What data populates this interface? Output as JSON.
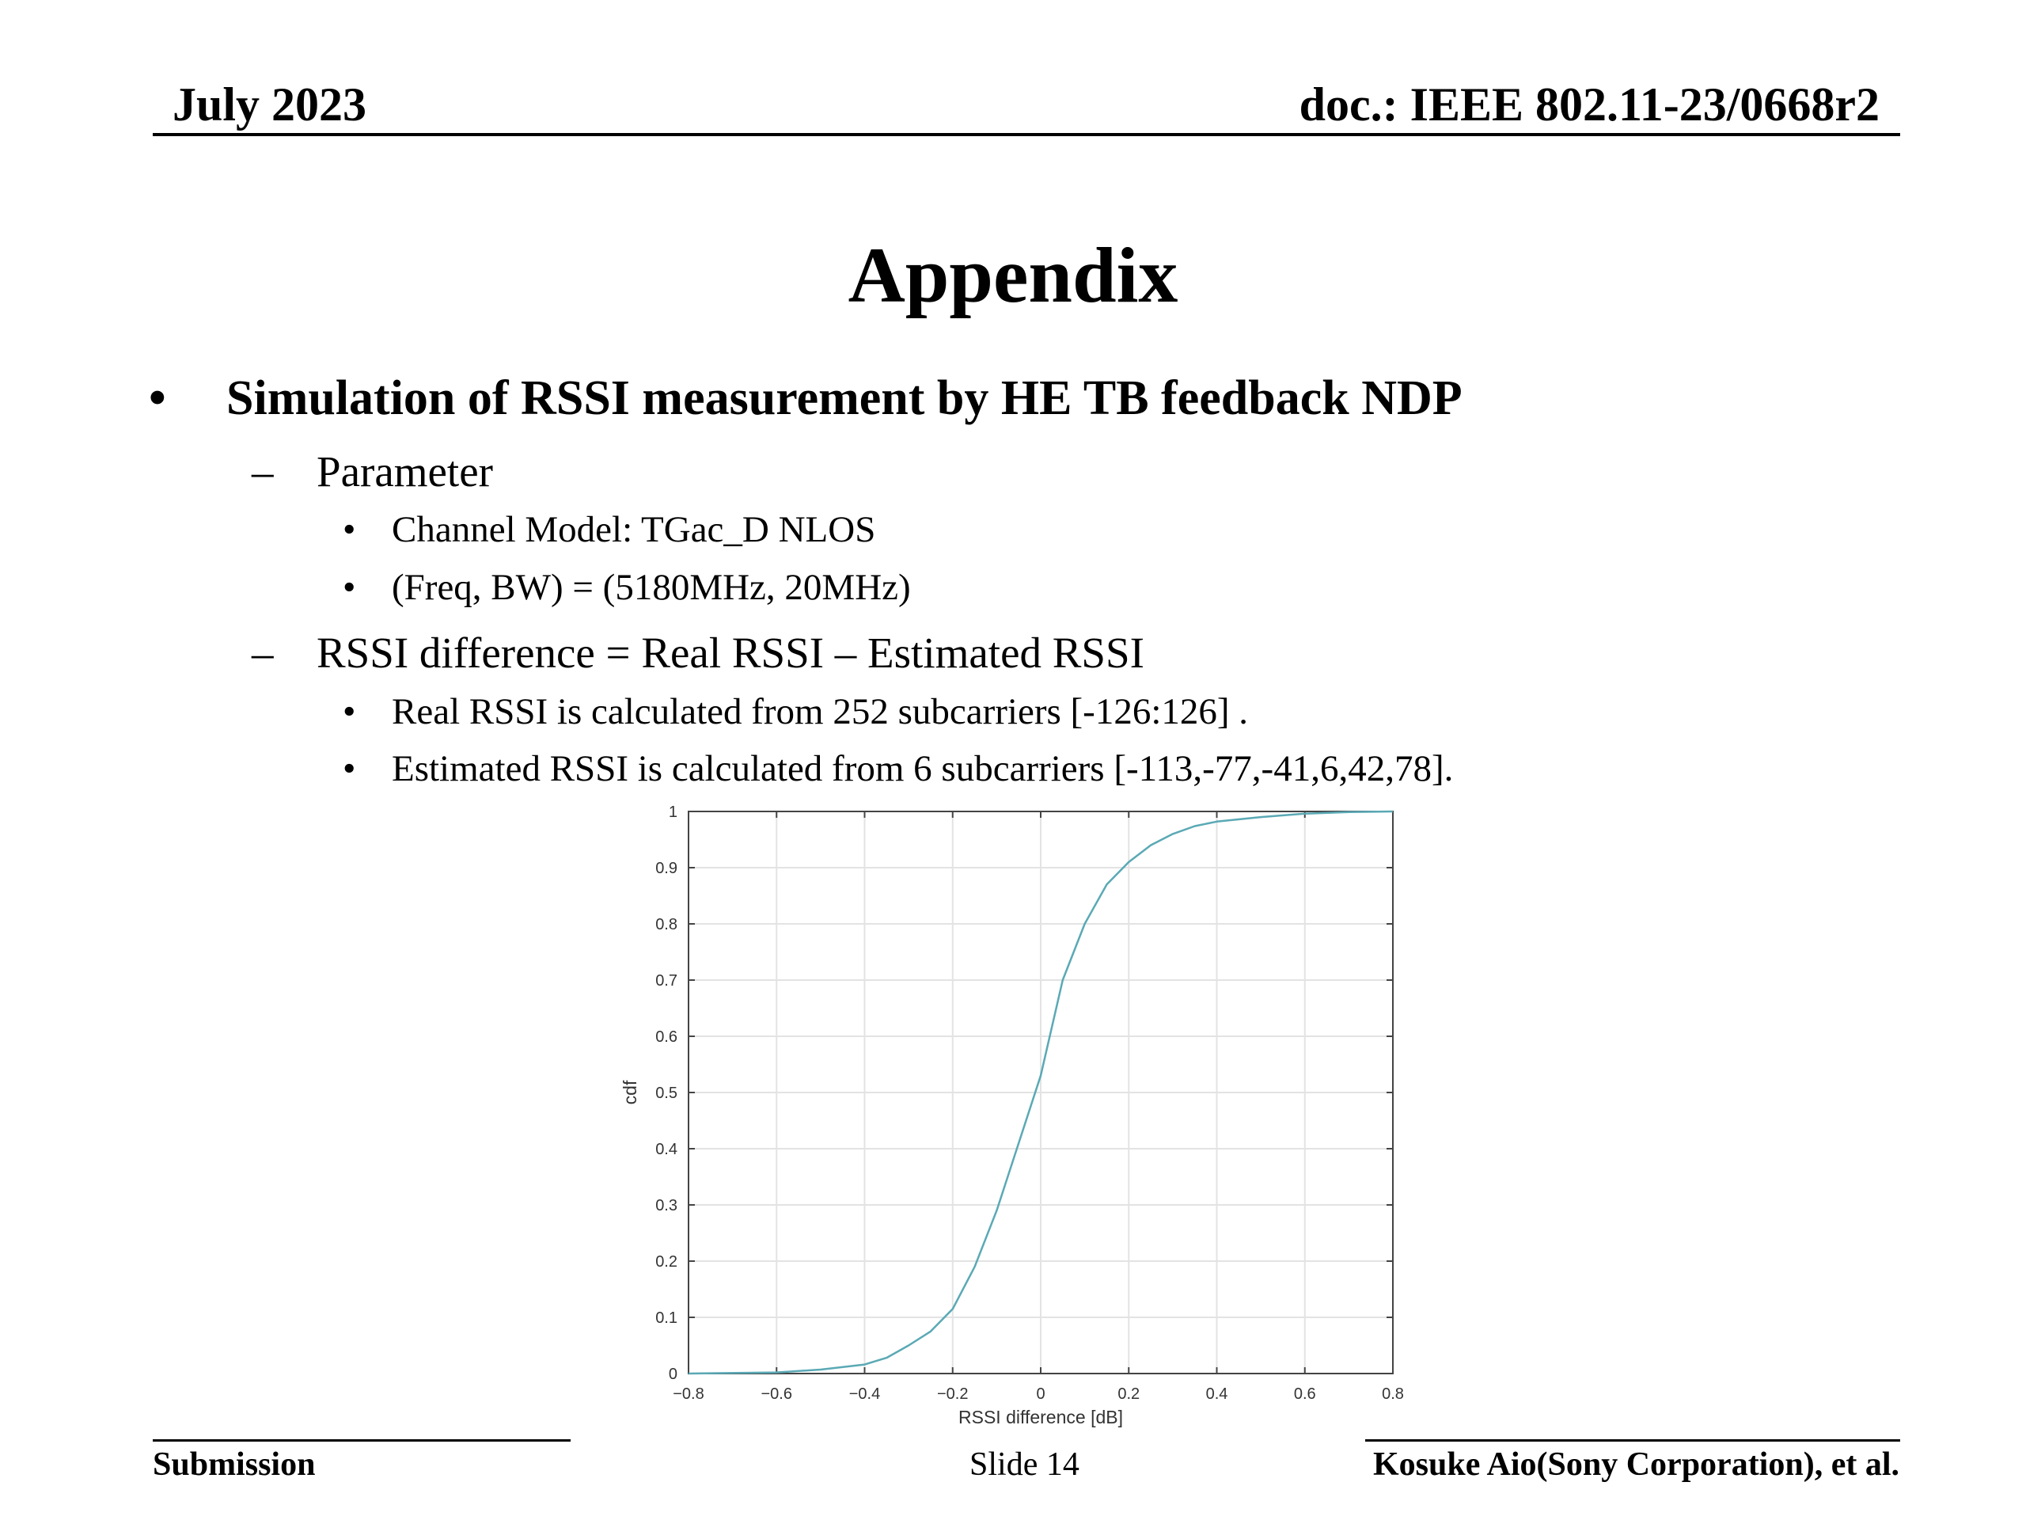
{
  "header": {
    "date": "July 2023",
    "doc": "doc.: IEEE 802.11-23/0668r2"
  },
  "title": "Appendix",
  "body": {
    "bullet": "Simulation of RSSI measurement by HE TB feedback NDP",
    "bullet_mark": "•",
    "dash_mark": "–",
    "sub_mark": "•",
    "sections": [
      {
        "label": "Parameter",
        "items": [
          "Channel Model: TGac_D NLOS",
          "(Freq, BW) = (5180MHz, 20MHz)"
        ]
      },
      {
        "label": "RSSI difference = Real RSSI – Estimated RSSI",
        "items": [
          "Real RSSI is calculated from 252 subcarriers [-126:126] .",
          "Estimated RSSI is calculated from 6 subcarriers [-113,-77,-41,6,42,78]."
        ]
      }
    ]
  },
  "chart_data": {
    "type": "line",
    "xlabel": "RSSI difference [dB]",
    "ylabel": "cdf",
    "xlim": [
      -0.8,
      0.8
    ],
    "ylim": [
      0,
      1
    ],
    "xticks": [
      "−0.8",
      "−0.6",
      "−0.4",
      "−0.2",
      "0",
      "0.2",
      "0.4",
      "0.6",
      "0.8"
    ],
    "yticks": [
      "0",
      "0.1",
      "0.2",
      "0.3",
      "0.4",
      "0.5",
      "0.6",
      "0.7",
      "0.8",
      "0.9",
      "1"
    ],
    "grid": true,
    "line_color": "#5aa9b5",
    "series": [
      {
        "x": [
          -0.8,
          -0.6,
          -0.5,
          -0.4,
          -0.35,
          -0.3,
          -0.25,
          -0.2,
          -0.15,
          -0.1,
          -0.05,
          0,
          0.05,
          0.1,
          0.15,
          0.2,
          0.25,
          0.3,
          0.35,
          0.4,
          0.5,
          0.6,
          0.7,
          0.8
        ],
        "y": [
          0,
          0.002,
          0.007,
          0.016,
          0.028,
          0.05,
          0.075,
          0.115,
          0.19,
          0.29,
          0.41,
          0.53,
          0.7,
          0.8,
          0.87,
          0.91,
          0.94,
          0.96,
          0.974,
          0.982,
          0.99,
          0.996,
          0.999,
          1.0
        ]
      }
    ]
  },
  "footer": {
    "left": "Submission",
    "center": "Slide 14",
    "right": "Kosuke Aio(Sony Corporation), et al."
  }
}
